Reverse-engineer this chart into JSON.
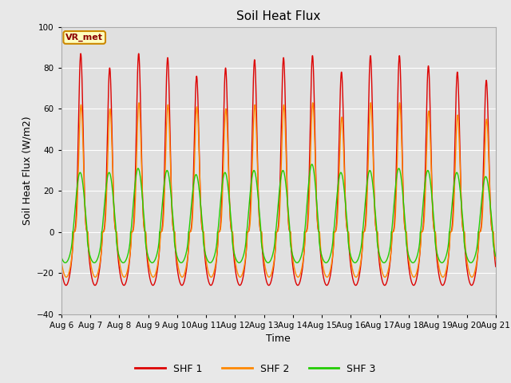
{
  "title": "Soil Heat Flux",
  "xlabel": "Time",
  "ylabel": "Soil Heat Flux (W/m2)",
  "ylim": [
    -40,
    100
  ],
  "yticks": [
    -40,
    -20,
    0,
    20,
    40,
    60,
    80,
    100
  ],
  "fig_bg_color": "#e8e8e8",
  "plot_bg_color": "#e0e0e0",
  "legend_label": "VR_met",
  "series_labels": [
    "SHF 1",
    "SHF 2",
    "SHF 3"
  ],
  "series_colors": [
    "#dd0000",
    "#ff8800",
    "#22cc00"
  ],
  "line_width": 1.0,
  "days": 15,
  "start_day": 6
}
